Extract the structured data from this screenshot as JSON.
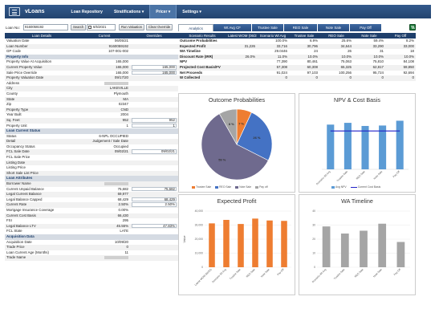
{
  "app": {
    "brand": "vLoans"
  },
  "nav": {
    "items": [
      {
        "label": "Loan Repository"
      },
      {
        "label": "Stratifications ▾"
      },
      {
        "label": "Pricer ▾"
      },
      {
        "label": "Settings ▾"
      }
    ]
  },
  "controls": {
    "loan_no_label": "Loan No:",
    "loan_no_value": "9160059192",
    "search_label": "Search",
    "date_value": "6/5/2021",
    "run_label": "Run Valuation",
    "clear_label": "Clear Override"
  },
  "loan_table": {
    "headers": [
      "Loan Details",
      "Current",
      "Overrides"
    ],
    "rows": [
      {
        "label": "Valuation Date",
        "current": "06/05/21",
        "override": ""
      },
      {
        "label": "Loan Number",
        "current": "9160059192",
        "override": ""
      },
      {
        "label": "GP Code",
        "current": "107-001-002",
        "override": ""
      },
      {
        "section": "Property Info"
      },
      {
        "label": "Property Value At Acquisition",
        "current": "165,000",
        "override": ""
      },
      {
        "label": "Current Property Value",
        "current": "165,000",
        "override": "165,000"
      },
      {
        "label": "Sale Price Override",
        "current": "165,000",
        "override": "165,000"
      },
      {
        "label": "Property Valuation Date",
        "current": "09/17/20",
        "override": ""
      },
      {
        "label": "Address",
        "current": "",
        "override": "",
        "redacted": true
      },
      {
        "label": "City",
        "current": "LAKEVILLE",
        "override": ""
      },
      {
        "label": "County",
        "current": "Plymouth",
        "override": ""
      },
      {
        "label": "State",
        "current": "MA",
        "override": ""
      },
      {
        "label": "Zip",
        "current": "02347",
        "override": ""
      },
      {
        "label": "Property Type",
        "current": "CND",
        "override": ""
      },
      {
        "label": "Year Built",
        "current": "2004",
        "override": ""
      },
      {
        "label": "Sq. Feet",
        "current": "952",
        "override": "952"
      },
      {
        "label": "Property Unit",
        "current": "1",
        "override": "1"
      },
      {
        "section": "Loan Current Status"
      },
      {
        "label": "Status",
        "current": "6-NPL OCCUPIED",
        "override": ""
      },
      {
        "label": "Detail",
        "current": "Judgement / Sale Date",
        "override": ""
      },
      {
        "label": "Occupancy Status",
        "current": "Occupied",
        "override": ""
      },
      {
        "label": "FCL Sale Date",
        "current": "09/02/21",
        "override": "09/02/21"
      },
      {
        "label": "FCL Sale Price",
        "current": "",
        "override": ""
      },
      {
        "label": "Listing Date",
        "current": "",
        "override": ""
      },
      {
        "label": "Listing Price",
        "current": "",
        "override": ""
      },
      {
        "label": "Short Sale List Price",
        "current": "",
        "override": ""
      },
      {
        "section": "Loan Attributes"
      },
      {
        "label": "Borrower Name",
        "current": "",
        "override": "",
        "redacted": true
      },
      {
        "label": "Current Unpaid Balance",
        "current": "75,682",
        "override": "75,682"
      },
      {
        "label": "Legal Current Balance",
        "current": "69,977",
        "override": ""
      },
      {
        "label": "Legal Balance Capped",
        "current": "68,429",
        "override": "68,429"
      },
      {
        "label": "Current Rate",
        "current": "2.50%",
        "override": "2.50%"
      },
      {
        "label": "Mortgage Insurance Coverage",
        "current": "0.00%",
        "override": ""
      },
      {
        "label": "Current Cost Basis",
        "current": "66,430",
        "override": ""
      },
      {
        "label": "FSI",
        "current": "295",
        "override": ""
      },
      {
        "label": "Legal Balance LTV",
        "current": "45.55%",
        "override": "47.83%"
      },
      {
        "label": "FCL State",
        "current": "LATE",
        "override": ""
      },
      {
        "section": "Acquisition Data"
      },
      {
        "label": "Acquisition Date",
        "current": "10/09/20",
        "override": ""
      },
      {
        "label": "Trade Price",
        "current": "0",
        "override": ""
      },
      {
        "label": "Loan Current Age (Months)",
        "current": "11",
        "override": ""
      },
      {
        "label": "Trade Name",
        "current": "",
        "override": "",
        "redacted": true
      }
    ]
  },
  "tabs": [
    {
      "label": "Analytics",
      "active": true
    },
    {
      "label": "Wt Avg CF",
      "active": false
    },
    {
      "label": "Trustee Sale",
      "active": false
    },
    {
      "label": "REO Sale",
      "active": false
    },
    {
      "label": "Note Sale",
      "active": false
    },
    {
      "label": "Pay Off",
      "active": false
    }
  ],
  "scenario_table": {
    "headers": [
      "Scenario Results",
      "Latest WOM (06/25)",
      "Scenario Wt Avg",
      "Trustee Sale",
      "REO Sale",
      "Note Sale",
      "Pay Off"
    ],
    "rows": [
      [
        "Outcome Probabilities",
        "",
        "100.0%",
        "6.9%",
        "25.6%",
        "59.4%",
        "8.2%"
      ],
      [
        "Expected Profit",
        "31,226",
        "33,716",
        "30,796",
        "34,644",
        "33,290",
        "33,000"
      ],
      [
        "WA Timeline",
        "",
        "29.0446",
        "24",
        "26",
        "31",
        "18"
      ],
      [
        "Discount Rate (IRR)",
        "26.0%",
        "11.0%",
        "10.0%",
        "10.0%",
        "10.0%",
        "10.0%"
      ],
      [
        "NPV",
        "",
        "77,390",
        "80,461",
        "75,063",
        "75,810",
        "84,108"
      ],
      [
        "Projected Cost Basis/FV",
        "",
        "57,308",
        "60,308",
        "65,325",
        "62,817",
        "59,850"
      ],
      [
        "Net Proceeds",
        "",
        "91,024",
        "97,103",
        "100,256",
        "95,724",
        "92,694"
      ],
      [
        "W Collected",
        "",
        "0",
        "0",
        "0",
        "0",
        "0"
      ]
    ]
  },
  "outcome_chart": {
    "title": "Outcome Probabilities",
    "chart_data": {
      "type": "pie",
      "title": "Outcome Probabilities",
      "categories": [
        "Trustee Sale",
        "REO Sale",
        "Note Sale",
        "Pay off"
      ],
      "values": [
        6.9,
        25.6,
        59.4,
        8.2
      ],
      "labels": [
        "7 %",
        "26 %",
        "59 %",
        "8 %"
      ],
      "colors": [
        "#ee7d31",
        "#4472c4",
        "#6f6a8e",
        "#a5a5a5"
      ],
      "legend": "bottom"
    }
  },
  "npv_chart": {
    "title": "NPV & Cost Basis",
    "chart_data": {
      "type": "bar",
      "title": "NPV & Cost Basis",
      "categories": [
        "Scenario Wt Avg",
        "Trustee Sale",
        "REO Sale",
        "Note Sale",
        "Pay Off"
      ],
      "series": [
        {
          "name": "Avg NPV",
          "values": [
            77390,
            80461,
            75063,
            75810,
            84108
          ],
          "color": "#5b9bd5"
        },
        {
          "name": "Current Cost Basis",
          "values": [
            66430,
            66430,
            66430,
            66430,
            66430
          ],
          "color": "#2222c8",
          "style": "line"
        }
      ],
      "legend": "bottom"
    }
  },
  "profit_chart": {
    "title": "Expected Profit",
    "chart_data": {
      "type": "bar",
      "title": "Expected Profit",
      "ylabel": "Value",
      "categories": [
        "Latest WOM (06/25)",
        "Scenario Wt Avg",
        "Trustee Sale",
        "REO Sale",
        "Note Sale",
        "Pay Off"
      ],
      "values": [
        31226,
        33716,
        30796,
        34644,
        33290,
        33000
      ],
      "yticks": [
        "0",
        "10,000",
        "20,000",
        "30,000",
        "40,000"
      ],
      "ylim": [
        0,
        40000
      ],
      "color": "#ee7d31"
    }
  },
  "wa_chart": {
    "title": "WA Timeline",
    "chart_data": {
      "type": "bar",
      "title": "WA Timeline",
      "categories": [
        "Scenario Wt Avg",
        "Trustee Sale",
        "REO Sale",
        "Note Sale",
        "Pay Off"
      ],
      "values": [
        29.0446,
        24,
        26,
        31,
        18
      ],
      "yticks": [
        "0",
        "10",
        "20",
        "30",
        "40"
      ],
      "ylim": [
        0,
        40
      ],
      "color": "#a5a5a5"
    }
  }
}
